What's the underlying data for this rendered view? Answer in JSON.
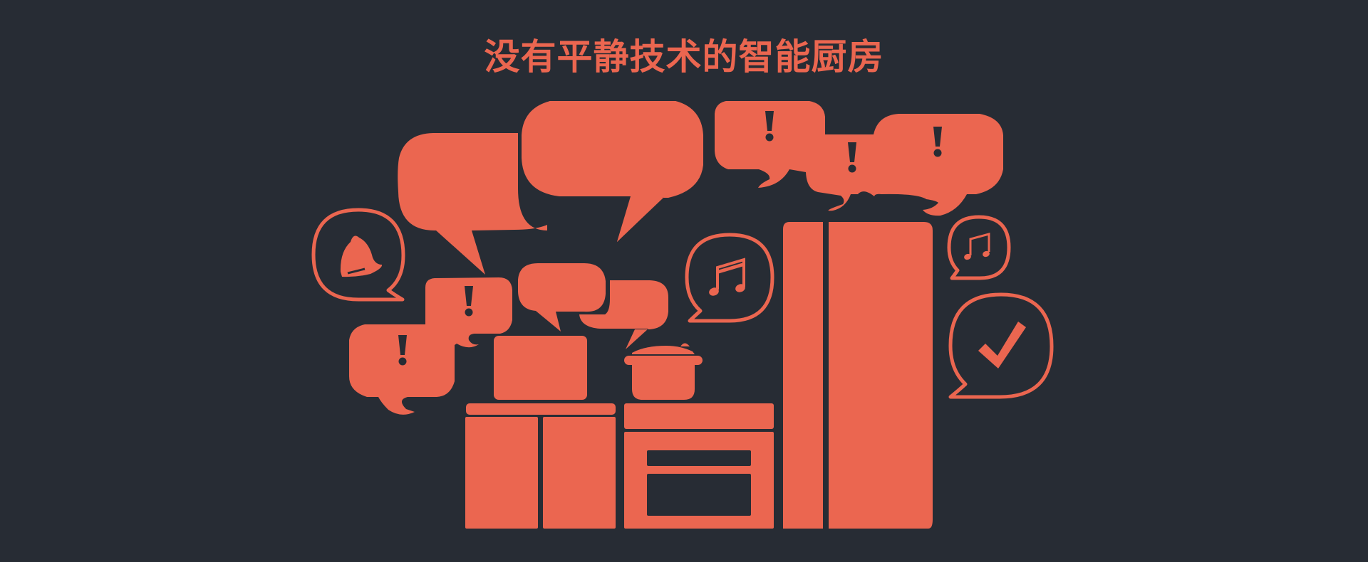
{
  "title": "没有平静技术的智能厨房",
  "colors": {
    "background": "#272c34",
    "accent": "#eb6650"
  },
  "icons": [
    "speech-bubble",
    "exclamation-icon",
    "bell-icon",
    "music-note-icon",
    "check-icon",
    "cooking-pot",
    "microwave",
    "stove-oven",
    "refrigerator",
    "kitchen-cabinet"
  ]
}
